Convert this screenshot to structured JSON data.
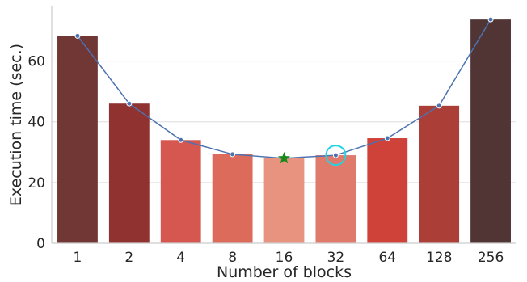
{
  "chart_data": {
    "type": "bar",
    "xlabel": "Number of blocks",
    "ylabel": "Execution time (sec.)",
    "categories": [
      "1",
      "2",
      "4",
      "8",
      "16",
      "32",
      "64",
      "128",
      "256"
    ],
    "values": [
      68.3,
      46.0,
      34.0,
      29.3,
      28.0,
      29.0,
      34.6,
      45.3,
      73.7
    ],
    "line_values": [
      68.3,
      46.0,
      34.0,
      29.3,
      28.0,
      29.0,
      34.6,
      45.3,
      73.7
    ],
    "bar_colors": [
      "#703735",
      "#8f3230",
      "#d65750",
      "#dd6b5c",
      "#e8937f",
      "#e07b6b",
      "#ce423a",
      "#ab3f38",
      "#513434"
    ],
    "line_color": "#4c72b0",
    "ylim": [
      0,
      78
    ],
    "yticks": [
      0,
      20,
      40,
      60
    ],
    "grid": "horizontal",
    "min_marker": {
      "category": "16",
      "value": 28.0,
      "shape": "star",
      "color": "#1a8a1a"
    },
    "highlight_marker": {
      "category": "32",
      "value": 29.0,
      "shape": "circle",
      "color": "#22d3e6"
    }
  }
}
